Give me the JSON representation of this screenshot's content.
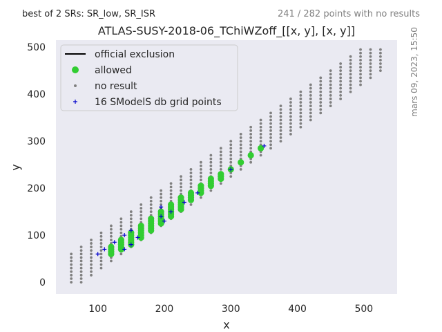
{
  "header": {
    "left_note": "best of 2 SRs: SR_low, SR_ISR",
    "right_note": "241 / 282 points with no results",
    "timestamp": "mars 09, 2023, 15:50"
  },
  "chart_data": {
    "type": "scatter",
    "title": "ATLAS-SUSY-2018-06_TChiWZoff_[[x, y], [x, y]]",
    "xlabel": "x",
    "ylabel": "y",
    "xlim": [
      37,
      550
    ],
    "ylim": [
      -25,
      515
    ],
    "xticks": [
      100,
      200,
      300,
      400,
      500
    ],
    "yticks": [
      0,
      100,
      200,
      300,
      400,
      500
    ],
    "grid": false,
    "background": "#eaeaf2",
    "legend_position": "top-left",
    "colors": {
      "official_exclusion": "#000000",
      "allowed": "#32cd32",
      "no_result": "#808080",
      "grid_points": "#0000cc"
    },
    "legend": [
      {
        "key": "official_exclusion",
        "label": "official exclusion",
        "marker": "line"
      },
      {
        "key": "allowed",
        "label": "allowed",
        "marker": "circle"
      },
      {
        "key": "no_result",
        "label": "no result",
        "marker": "dot"
      },
      {
        "key": "grid_points",
        "label": "16 SModelS db grid points",
        "marker": "plus"
      }
    ],
    "no_result_columns": [
      {
        "x": 60,
        "y": [
          0,
          60
        ]
      },
      {
        "x": 75,
        "y": [
          0,
          75
        ]
      },
      {
        "x": 90,
        "y": [
          15,
          90
        ]
      },
      {
        "x": 105,
        "y": [
          30,
          105
        ]
      },
      {
        "x": 120,
        "y": [
          45,
          120
        ]
      },
      {
        "x": 135,
        "y": [
          60,
          135
        ]
      },
      {
        "x": 150,
        "y": [
          75,
          150
        ]
      },
      {
        "x": 165,
        "y": [
          90,
          165
        ]
      },
      {
        "x": 180,
        "y": [
          105,
          180
        ]
      },
      {
        "x": 195,
        "y": [
          120,
          195
        ]
      },
      {
        "x": 210,
        "y": [
          135,
          210
        ]
      },
      {
        "x": 225,
        "y": [
          150,
          225
        ]
      },
      {
        "x": 240,
        "y": [
          165,
          240
        ]
      },
      {
        "x": 255,
        "y": [
          180,
          255
        ]
      },
      {
        "x": 270,
        "y": [
          195,
          270
        ]
      },
      {
        "x": 285,
        "y": [
          210,
          285
        ]
      },
      {
        "x": 300,
        "y": [
          225,
          300
        ]
      },
      {
        "x": 315,
        "y": [
          240,
          315
        ]
      },
      {
        "x": 330,
        "y": [
          255,
          330
        ]
      },
      {
        "x": 345,
        "y": [
          270,
          345
        ]
      },
      {
        "x": 360,
        "y": [
          285,
          360
        ]
      },
      {
        "x": 375,
        "y": [
          300,
          375
        ]
      },
      {
        "x": 390,
        "y": [
          315,
          390
        ]
      },
      {
        "x": 405,
        "y": [
          330,
          405
        ]
      },
      {
        "x": 420,
        "y": [
          345,
          420
        ]
      },
      {
        "x": 435,
        "y": [
          360,
          435
        ]
      },
      {
        "x": 450,
        "y": [
          375,
          450
        ]
      },
      {
        "x": 465,
        "y": [
          390,
          465
        ]
      },
      {
        "x": 480,
        "y": [
          405,
          480
        ]
      },
      {
        "x": 495,
        "y": [
          420,
          495
        ]
      },
      {
        "x": 510,
        "y": [
          435,
          495
        ]
      },
      {
        "x": 525,
        "y": [
          450,
          495
        ]
      }
    ],
    "allowed_points": [
      [
        120,
        60
      ],
      [
        120,
        65
      ],
      [
        120,
        70
      ],
      [
        120,
        75
      ],
      [
        135,
        70
      ],
      [
        135,
        75
      ],
      [
        135,
        80
      ],
      [
        135,
        85
      ],
      [
        135,
        90
      ],
      [
        150,
        80
      ],
      [
        150,
        85
      ],
      [
        150,
        90
      ],
      [
        150,
        95
      ],
      [
        150,
        100
      ],
      [
        150,
        105
      ],
      [
        165,
        95
      ],
      [
        165,
        100
      ],
      [
        165,
        105
      ],
      [
        165,
        110
      ],
      [
        165,
        115
      ],
      [
        165,
        120
      ],
      [
        180,
        110
      ],
      [
        180,
        115
      ],
      [
        180,
        120
      ],
      [
        180,
        125
      ],
      [
        180,
        130
      ],
      [
        180,
        135
      ],
      [
        195,
        125
      ],
      [
        195,
        130
      ],
      [
        195,
        135
      ],
      [
        195,
        140
      ],
      [
        195,
        145
      ],
      [
        195,
        150
      ],
      [
        210,
        140
      ],
      [
        210,
        145
      ],
      [
        210,
        150
      ],
      [
        210,
        155
      ],
      [
        210,
        160
      ],
      [
        210,
        165
      ],
      [
        225,
        155
      ],
      [
        225,
        160
      ],
      [
        225,
        165
      ],
      [
        225,
        170
      ],
      [
        225,
        175
      ],
      [
        225,
        180
      ],
      [
        240,
        175
      ],
      [
        240,
        180
      ],
      [
        240,
        185
      ],
      [
        240,
        190
      ],
      [
        255,
        190
      ],
      [
        255,
        195
      ],
      [
        255,
        200
      ],
      [
        255,
        205
      ],
      [
        270,
        205
      ],
      [
        270,
        210
      ],
      [
        270,
        215
      ],
      [
        270,
        220
      ],
      [
        285,
        220
      ],
      [
        285,
        225
      ],
      [
        285,
        230
      ],
      [
        300,
        240
      ],
      [
        315,
        255
      ],
      [
        330,
        270
      ],
      [
        345,
        285
      ]
    ],
    "grid_points": [
      [
        100,
        60
      ],
      [
        110,
        70
      ],
      [
        125,
        85
      ],
      [
        140,
        100
      ],
      [
        140,
        70
      ],
      [
        150,
        110
      ],
      [
        150,
        80
      ],
      [
        160,
        95
      ],
      [
        195,
        160
      ],
      [
        195,
        140
      ],
      [
        200,
        130
      ],
      [
        250,
        190
      ],
      [
        300,
        240
      ],
      [
        350,
        290
      ],
      [
        210,
        150
      ],
      [
        230,
        170
      ]
    ]
  }
}
